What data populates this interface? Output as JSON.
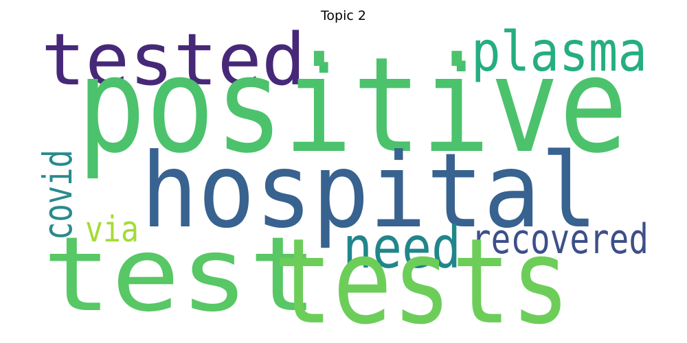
{
  "title": "Topic 2",
  "words": [
    {
      "id": "positive",
      "text": "positive",
      "color": "#4cc26c"
    },
    {
      "id": "hospital",
      "text": "hospital",
      "color": "#38628f"
    },
    {
      "id": "tests",
      "text": "tests",
      "color": "#6cce59"
    },
    {
      "id": "test",
      "text": "test",
      "color": "#58c765"
    },
    {
      "id": "tested",
      "text": "tested",
      "color": "#472878"
    },
    {
      "id": "plasma",
      "text": "plasma",
      "color": "#25ae7f"
    },
    {
      "id": "need",
      "text": "need",
      "color": "#21868b"
    },
    {
      "id": "recovered",
      "text": "recovered",
      "color": "#3d4f8a"
    },
    {
      "id": "covid",
      "text": "covid",
      "color": "#2a8a8c"
    },
    {
      "id": "via",
      "text": "via",
      "color": "#a5db36"
    },
    {
      "id": "dot1",
      "text": ".",
      "color": "#46c06f"
    },
    {
      "id": "dot2",
      "text": ".",
      "color": "#46c06f"
    }
  ]
}
